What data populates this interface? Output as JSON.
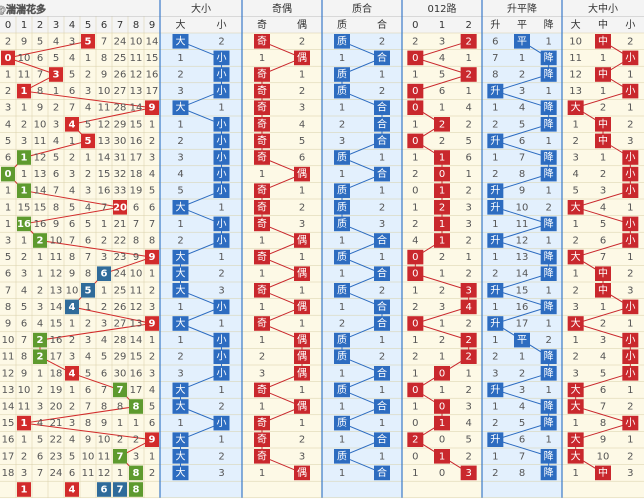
{
  "watermark": "搜狐号@湍湍花多",
  "headers": {
    "digits": [
      "0",
      "1",
      "2",
      "3",
      "4",
      "5",
      "6",
      "7",
      "8",
      "9"
    ],
    "sections": [
      {
        "title": "大小",
        "labels": [
          "大",
          "小"
        ]
      },
      {
        "title": "奇偶",
        "labels": [
          "奇",
          "偶"
        ]
      },
      {
        "title": "质合",
        "labels": [
          "质",
          "合"
        ]
      },
      {
        "title": "012路",
        "labels": [
          "0",
          "1",
          "2"
        ]
      },
      {
        "title": "升平降",
        "labels": [
          "升",
          "平",
          "降"
        ]
      },
      {
        "title": "大中小",
        "labels": [
          "大",
          "中",
          "小"
        ]
      }
    ]
  },
  "rows": [
    {
      "digits": [
        "2",
        "9",
        "5",
        "4",
        "3",
        "5",
        "7",
        "24",
        "10",
        "14"
      ],
      "hit": 5,
      "hit_color": "#d22b2b",
      "sections": [
        [
          "大",
          "2"
        ],
        [
          "奇",
          "2"
        ],
        [
          "质",
          "2"
        ],
        [
          "2",
          "3",
          "2"
        ],
        [
          "6",
          "平",
          "1"
        ],
        [
          "10",
          "中",
          "2"
        ]
      ],
      "r012_hit": 2
    },
    {
      "digits": [
        "0",
        "10",
        "6",
        "5",
        "4",
        "1",
        "8",
        "25",
        "11",
        "15"
      ],
      "hit": 0,
      "hit_color": "#d22b2b",
      "sections": [
        [
          "1",
          "小"
        ],
        [
          "1",
          "偶"
        ],
        [
          "1",
          "合"
        ],
        [
          "0",
          "4",
          "1"
        ],
        [
          "7",
          "1",
          "降"
        ],
        [
          "11",
          "1",
          "小"
        ]
      ],
      "r012_hit": 0
    },
    {
      "digits": [
        "1",
        "11",
        "7",
        "3",
        "5",
        "2",
        "9",
        "26",
        "12",
        "16"
      ],
      "hit": 3,
      "hit_color": "#d22b2b",
      "sections": [
        [
          "2",
          "小"
        ],
        [
          "奇",
          "1"
        ],
        [
          "质",
          "1"
        ],
        [
          "1",
          "5",
          "2"
        ],
        [
          "8",
          "2",
          "降"
        ],
        [
          "12",
          "中",
          "1"
        ]
      ],
      "r012_hit": 2
    },
    {
      "digits": [
        "2",
        "1",
        "8",
        "1",
        "6",
        "3",
        "10",
        "27",
        "13",
        "17"
      ],
      "hit": 1,
      "hit_color": "#d22b2b",
      "sections": [
        [
          "3",
          "小"
        ],
        [
          "奇",
          "2"
        ],
        [
          "质",
          "2"
        ],
        [
          "0",
          "6",
          "1"
        ],
        [
          "升",
          "3",
          "1"
        ],
        [
          "13",
          "1",
          "小"
        ]
      ],
      "r012_hit": 0
    },
    {
      "digits": [
        "3",
        "1",
        "9",
        "2",
        "7",
        "4",
        "11",
        "28",
        "14",
        "9"
      ],
      "hit": 9,
      "hit_color": "#d22b2b",
      "sections": [
        [
          "大",
          "1"
        ],
        [
          "奇",
          "3"
        ],
        [
          "1",
          "合"
        ],
        [
          "0",
          "1",
          "4"
        ],
        [
          "1",
          "4",
          "降"
        ],
        [
          "大",
          "2",
          "1"
        ]
      ],
      "r012_hit": 0
    },
    {
      "digits": [
        "4",
        "2",
        "10",
        "3",
        "4",
        "5",
        "12",
        "29",
        "15",
        "1"
      ],
      "hit": 4,
      "hit_color": "#d22b2b",
      "sections": [
        [
          "1",
          "小"
        ],
        [
          "奇",
          "4"
        ],
        [
          "2",
          "合"
        ],
        [
          "1",
          "2",
          "2"
        ],
        [
          "2",
          "5",
          "降"
        ],
        [
          "1",
          "中",
          "2"
        ]
      ],
      "r012_hit": 1
    },
    {
      "digits": [
        "5",
        "3",
        "11",
        "4",
        "1",
        "5",
        "13",
        "30",
        "16",
        "2"
      ],
      "hit": 5,
      "hit_color": "#d22b2b",
      "sections": [
        [
          "2",
          "小"
        ],
        [
          "奇",
          "5"
        ],
        [
          "3",
          "合"
        ],
        [
          "0",
          "2",
          "5"
        ],
        [
          "升",
          "6",
          "1"
        ],
        [
          "2",
          "中",
          "3"
        ]
      ],
      "r012_hit": 0
    },
    {
      "digits": [
        "6",
        "1",
        "12",
        "5",
        "2",
        "1",
        "14",
        "31",
        "17",
        "3"
      ],
      "hit": 1,
      "hit_color": "#5e9a2e",
      "sections": [
        [
          "3",
          "小"
        ],
        [
          "奇",
          "6"
        ],
        [
          "质",
          "1"
        ],
        [
          "1",
          "1",
          "6"
        ],
        [
          "1",
          "7",
          "降"
        ],
        [
          "3",
          "1",
          "小"
        ]
      ],
      "r012_hit": 1
    },
    {
      "digits": [
        "0",
        "1",
        "13",
        "6",
        "3",
        "2",
        "15",
        "32",
        "18",
        "4"
      ],
      "hit": 0,
      "hit_color": "#5e9a2e",
      "sections": [
        [
          "4",
          "小"
        ],
        [
          "1",
          "偶"
        ],
        [
          "1",
          "合"
        ],
        [
          "2",
          "0",
          "1"
        ],
        [
          "2",
          "8",
          "降"
        ],
        [
          "4",
          "2",
          "小"
        ]
      ],
      "r012_hit": 1
    },
    {
      "digits": [
        "1",
        "1",
        "14",
        "7",
        "4",
        "3",
        "16",
        "33",
        "19",
        "5"
      ],
      "hit": 1,
      "hit_color": "#5e9a2e",
      "sections": [
        [
          "5",
          "小"
        ],
        [
          "奇",
          "1"
        ],
        [
          "质",
          "1"
        ],
        [
          "0",
          "1",
          "2"
        ],
        [
          "升",
          "9",
          "1"
        ],
        [
          "5",
          "3",
          "小"
        ]
      ],
      "r012_hit": 1
    },
    {
      "digits": [
        "1",
        "15",
        "15",
        "8",
        "5",
        "4",
        "7",
        "20",
        "6",
        "6"
      ],
      "hit": 7,
      "hit_color": "#d22b2b",
      "sections": [
        [
          "大",
          "1"
        ],
        [
          "奇",
          "2"
        ],
        [
          "质",
          "2"
        ],
        [
          "1",
          "2",
          "3"
        ],
        [
          "升",
          "10",
          "2"
        ],
        [
          "大",
          "4",
          "1"
        ]
      ],
      "r012_hit": 1
    },
    {
      "digits": [
        "1",
        "16",
        "16",
        "9",
        "6",
        "5",
        "1",
        "21",
        "7",
        "7"
      ],
      "hit": 1,
      "hit_color": "#5e9a2e",
      "sections": [
        [
          "1",
          "小"
        ],
        [
          "奇",
          "3"
        ],
        [
          "质",
          "3"
        ],
        [
          "2",
          "1",
          "3"
        ],
        [
          "1",
          "11",
          "降"
        ],
        [
          "1",
          "5",
          "小"
        ]
      ],
      "r012_hit": 1
    },
    {
      "digits": [
        "3",
        "1",
        "2",
        "10",
        "7",
        "6",
        "2",
        "22",
        "8",
        "8"
      ],
      "hit": 2,
      "hit_color": "#5e9a2e",
      "sections": [
        [
          "2",
          "小"
        ],
        [
          "1",
          "偶"
        ],
        [
          "1",
          "合"
        ],
        [
          "4",
          "1",
          "2"
        ],
        [
          "升",
          "12",
          "1"
        ],
        [
          "2",
          "6",
          "小"
        ]
      ],
      "r012_hit": 1
    },
    {
      "digits": [
        "5",
        "2",
        "1",
        "11",
        "8",
        "7",
        "3",
        "23",
        "9",
        "9"
      ],
      "hit": 9,
      "hit_color": "#d22b2b",
      "sections": [
        [
          "大",
          "1"
        ],
        [
          "奇",
          "1"
        ],
        [
          "质",
          "1"
        ],
        [
          "0",
          "2",
          "1"
        ],
        [
          "1",
          "13",
          "降"
        ],
        [
          "大",
          "7",
          "1"
        ]
      ],
      "r012_hit": 0
    },
    {
      "digits": [
        "6",
        "3",
        "1",
        "12",
        "9",
        "8",
        "6",
        "24",
        "10",
        "1"
      ],
      "hit": 6,
      "hit_color": "#2f6b9a",
      "sections": [
        [
          "大",
          "2"
        ],
        [
          "1",
          "偶"
        ],
        [
          "1",
          "合"
        ],
        [
          "0",
          "1",
          "2"
        ],
        [
          "2",
          "14",
          "降"
        ],
        [
          "1",
          "中",
          "2"
        ]
      ],
      "r012_hit": 0
    },
    {
      "digits": [
        "7",
        "4",
        "2",
        "13",
        "10",
        "5",
        "1",
        "25",
        "11",
        "2"
      ],
      "hit": 5,
      "hit_color": "#2f6b9a",
      "sections": [
        [
          "大",
          "3"
        ],
        [
          "奇",
          "1"
        ],
        [
          "质",
          "2"
        ],
        [
          "1",
          "2",
          "3"
        ],
        [
          "升",
          "15",
          "1"
        ],
        [
          "2",
          "中",
          "3"
        ]
      ],
      "r012_hit": 2
    },
    {
      "digits": [
        "8",
        "5",
        "3",
        "14",
        "4",
        "1",
        "2",
        "26",
        "12",
        "3"
      ],
      "hit": 4,
      "hit_color": "#2f6b9a",
      "sections": [
        [
          "1",
          "小"
        ],
        [
          "1",
          "偶"
        ],
        [
          "1",
          "合"
        ],
        [
          "2",
          "3",
          "4"
        ],
        [
          "1",
          "16",
          "降"
        ],
        [
          "3",
          "1",
          "小"
        ]
      ],
      "r012_hit": 2
    },
    {
      "digits": [
        "9",
        "6",
        "4",
        "15",
        "1",
        "2",
        "3",
        "27",
        "13",
        "9"
      ],
      "hit": 9,
      "hit_color": "#d22b2b",
      "sections": [
        [
          "大",
          "1"
        ],
        [
          "奇",
          "1"
        ],
        [
          "2",
          "合"
        ],
        [
          "0",
          "1",
          "2"
        ],
        [
          "升",
          "17",
          "1"
        ],
        [
          "大",
          "2",
          "1"
        ]
      ],
      "r012_hit": 0
    },
    {
      "digits": [
        "10",
        "7",
        "2",
        "16",
        "2",
        "3",
        "4",
        "28",
        "14",
        "1"
      ],
      "hit": 2,
      "hit_color": "#5e9a2e",
      "sections": [
        [
          "1",
          "小"
        ],
        [
          "1",
          "偶"
        ],
        [
          "质",
          "1"
        ],
        [
          "1",
          "2",
          "2"
        ],
        [
          "1",
          "平",
          "2"
        ],
        [
          "1",
          "3",
          "小"
        ]
      ],
      "r012_hit": 2
    },
    {
      "digits": [
        "11",
        "8",
        "2",
        "17",
        "3",
        "4",
        "5",
        "29",
        "15",
        "2"
      ],
      "hit": 2,
      "hit_color": "#5e9a2e",
      "sections": [
        [
          "2",
          "小"
        ],
        [
          "2",
          "偶"
        ],
        [
          "质",
          "2"
        ],
        [
          "2",
          "1",
          "2"
        ],
        [
          "2",
          "1",
          "降"
        ],
        [
          "2",
          "4",
          "小"
        ]
      ],
      "r012_hit": 2
    },
    {
      "digits": [
        "12",
        "9",
        "1",
        "18",
        "4",
        "5",
        "6",
        "30",
        "16",
        "3"
      ],
      "hit": 4,
      "hit_color": "#d22b2b",
      "sections": [
        [
          "3",
          "小"
        ],
        [
          "3",
          "偶"
        ],
        [
          "1",
          "合"
        ],
        [
          "1",
          "0",
          "1"
        ],
        [
          "3",
          "2",
          "降"
        ],
        [
          "3",
          "5",
          "小"
        ]
      ],
      "r012_hit": 1
    },
    {
      "digits": [
        "13",
        "10",
        "2",
        "19",
        "1",
        "6",
        "7",
        "7",
        "17",
        "4"
      ],
      "hit": 7,
      "hit_color": "#5e9a2e",
      "sections": [
        [
          "大",
          "1"
        ],
        [
          "奇",
          "1"
        ],
        [
          "质",
          "1"
        ],
        [
          "0",
          "1",
          "2"
        ],
        [
          "升",
          "3",
          "1"
        ],
        [
          "大",
          "6",
          "1"
        ]
      ],
      "r012_hit": 0
    },
    {
      "digits": [
        "14",
        "11",
        "3",
        "20",
        "2",
        "7",
        "8",
        "8",
        "8",
        "5"
      ],
      "hit": 8,
      "hit_color": "#5e9a2e",
      "sections": [
        [
          "大",
          "2"
        ],
        [
          "1",
          "偶"
        ],
        [
          "1",
          "合"
        ],
        [
          "1",
          "0",
          "3"
        ],
        [
          "1",
          "4",
          "降"
        ],
        [
          "大",
          "7",
          "2"
        ]
      ],
      "r012_hit": 1
    },
    {
      "digits": [
        "15",
        "1",
        "4",
        "21",
        "3",
        "8",
        "9",
        "1",
        "1",
        "6"
      ],
      "hit": 1,
      "hit_color": "#d22b2b",
      "sections": [
        [
          "1",
          "小"
        ],
        [
          "奇",
          "1"
        ],
        [
          "质",
          "1"
        ],
        [
          "0",
          "1",
          "4"
        ],
        [
          "2",
          "5",
          "降"
        ],
        [
          "1",
          "8",
          "小"
        ]
      ],
      "r012_hit": 1
    },
    {
      "digits": [
        "16",
        "1",
        "5",
        "22",
        "4",
        "9",
        "10",
        "2",
        "2",
        "9"
      ],
      "hit": 9,
      "hit_color": "#d22b2b",
      "sections": [
        [
          "大",
          "1"
        ],
        [
          "奇",
          "2"
        ],
        [
          "1",
          "合"
        ],
        [
          "2",
          "0",
          "5"
        ],
        [
          "升",
          "6",
          "1"
        ],
        [
          "大",
          "9",
          "1"
        ]
      ],
      "r012_hit": 0
    },
    {
      "digits": [
        "17",
        "2",
        "6",
        "23",
        "5",
        "10",
        "11",
        "7",
        "3",
        "1"
      ],
      "hit": 7,
      "hit_color": "#5e9a2e",
      "sections": [
        [
          "大",
          "2"
        ],
        [
          "奇",
          "3"
        ],
        [
          "质",
          "1"
        ],
        [
          "0",
          "1",
          "2"
        ],
        [
          "1",
          "7",
          "降"
        ],
        [
          "大",
          "10",
          "2"
        ]
      ],
      "r012_hit": 1
    },
    {
      "digits": [
        "18",
        "3",
        "7",
        "24",
        "6",
        "11",
        "12",
        "1",
        "8",
        "2"
      ],
      "hit": 8,
      "hit_color": "#5e9a2e",
      "sections": [
        [
          "大",
          "3"
        ],
        [
          "1",
          "偶"
        ],
        [
          "1",
          "合"
        ],
        [
          "1",
          "0",
          "3"
        ],
        [
          "2",
          "8",
          "降"
        ],
        [
          "1",
          "中",
          "3"
        ]
      ],
      "r012_hit": 2
    }
  ],
  "final": [
    null,
    "1",
    null,
    null,
    "4",
    null,
    "6",
    "7",
    "8",
    null
  ]
}
